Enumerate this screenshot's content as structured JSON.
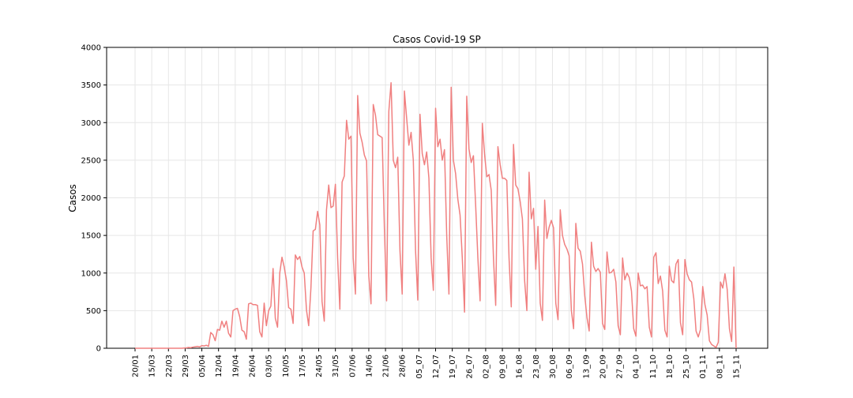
{
  "chart_data": {
    "type": "line",
    "title": "Casos Covid-19 SP",
    "xlabel": "",
    "ylabel": "Casos",
    "ylim": [
      0,
      4000
    ],
    "yticks": [
      0,
      500,
      1000,
      1500,
      2000,
      2500,
      3000,
      3500,
      4000
    ],
    "grid": true,
    "line_color": "#f08080",
    "xtick_labels": [
      "20/01",
      "15/03",
      "22/03",
      "29/03",
      "05/04",
      "12/04",
      "19/04",
      "26/04",
      "03/05",
      "10/05",
      "17/05",
      "24/05",
      "31/05",
      "07/06",
      "14/06",
      "21/06",
      "28/06",
      "05_07",
      "12_07",
      "19_07",
      "26_07",
      "02_08",
      "09_08",
      "16_08",
      "23_08",
      "30_08",
      "06_09",
      "13_09",
      "20_09",
      "27_09",
      "04_10",
      "11_10",
      "18_10",
      "25_10",
      "01_11",
      "08_11",
      "15_11"
    ],
    "series": [
      {
        "values": [
          0,
          0,
          0,
          0,
          0,
          0,
          0,
          0,
          0,
          0,
          0,
          0,
          0,
          0,
          0,
          0,
          0,
          0,
          0,
          0,
          0,
          0,
          3,
          5,
          10,
          8,
          15,
          20,
          25,
          18,
          35,
          30,
          40,
          25,
          210,
          180,
          100,
          250,
          240,
          360,
          280,
          360,
          200,
          150,
          500,
          520,
          530,
          420,
          240,
          220,
          120,
          590,
          600,
          580,
          580,
          570,
          220,
          150,
          600,
          300,
          500,
          560,
          1060,
          400,
          280,
          1000,
          1210,
          1080,
          900,
          540,
          520,
          330,
          1240,
          1180,
          1220,
          1080,
          1000,
          510,
          300,
          800,
          1560,
          1580,
          1820,
          1640,
          620,
          360,
          1840,
          2170,
          1870,
          1890,
          2180,
          1200,
          520,
          2210,
          2290,
          3030,
          2780,
          2820,
          1200,
          720,
          3360,
          2860,
          2740,
          2570,
          2490,
          960,
          590,
          3240,
          3100,
          2840,
          2820,
          2800,
          1600,
          630,
          3150,
          3530,
          2500,
          2400,
          2540,
          1300,
          720,
          3420,
          3060,
          2700,
          2870,
          2500,
          1300,
          640,
          3110,
          2590,
          2440,
          2610,
          2260,
          1200,
          770,
          3190,
          2680,
          2780,
          2500,
          2640,
          1500,
          720,
          3470,
          2500,
          2320,
          1980,
          1770,
          1200,
          480,
          3350,
          2650,
          2470,
          2560,
          1900,
          1200,
          630,
          2990,
          2580,
          2280,
          2310,
          2100,
          1200,
          570,
          2680,
          2440,
          2260,
          2260,
          2230,
          1200,
          550,
          2710,
          2170,
          2120,
          1950,
          1720,
          900,
          500,
          2340,
          1720,
          1860,
          1050,
          1620,
          600,
          370,
          1970,
          1460,
          1610,
          1700,
          1600,
          600,
          380,
          1840,
          1500,
          1380,
          1320,
          1230,
          500,
          260,
          1660,
          1330,
          1290,
          1120,
          700,
          410,
          230,
          1410,
          1090,
          1020,
          1060,
          1010,
          330,
          250,
          1280,
          1000,
          1010,
          1050,
          880,
          300,
          180,
          1200,
          910,
          1000,
          940,
          760,
          260,
          160,
          1000,
          830,
          840,
          790,
          820,
          280,
          150,
          1210,
          1270,
          860,
          960,
          760,
          240,
          150,
          1090,
          900,
          870,
          1120,
          1180,
          340,
          180,
          1180,
          990,
          910,
          880,
          660,
          230,
          150,
          250,
          820,
          580,
          440,
          100,
          50,
          30,
          10,
          80,
          880,
          800,
          990,
          780,
          260,
          90,
          1080,
          0
        ]
      }
    ]
  }
}
